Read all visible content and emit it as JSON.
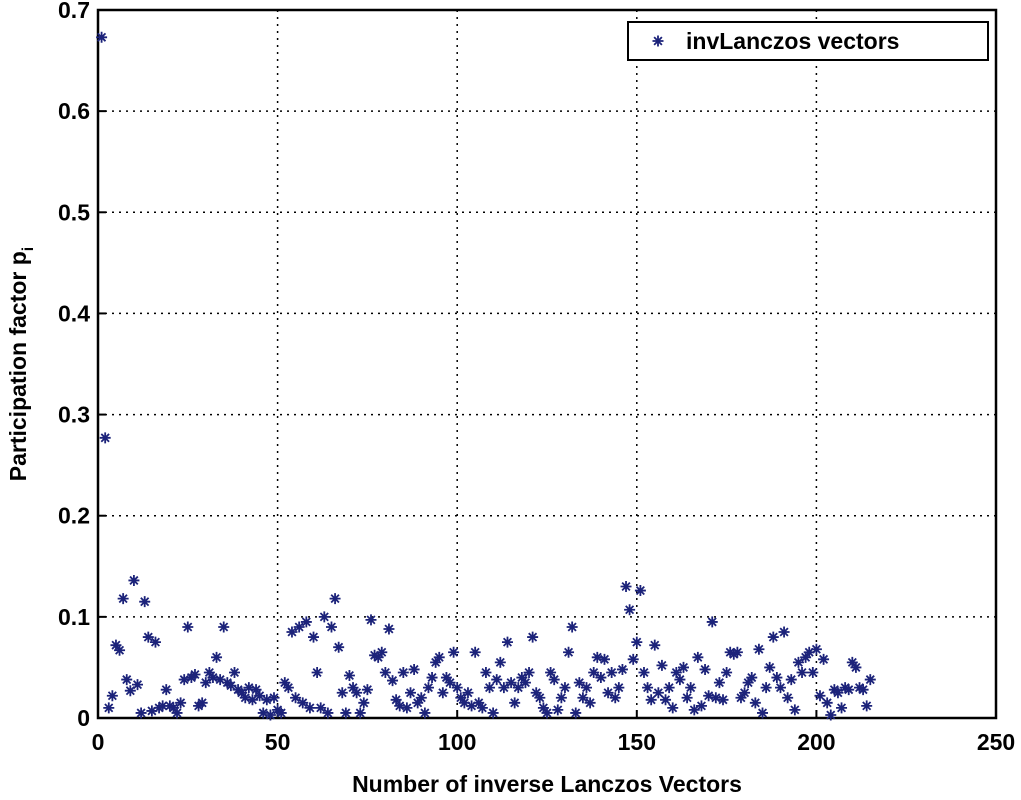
{
  "chart_data": {
    "type": "scatter",
    "xlabel": "Number of inverse Lanczos Vectors",
    "ylabel": "Participation factor p",
    "ylabel_subscript": "i",
    "series": [
      {
        "name": "invLanczos vectors",
        "color": "#1c237a",
        "x": [
          1,
          2,
          3,
          4,
          5,
          6,
          7,
          8,
          9,
          10,
          11,
          12,
          13,
          14,
          15,
          16,
          17,
          18,
          19,
          20,
          21,
          22,
          23,
          24,
          25,
          26,
          27,
          28,
          29,
          30,
          31,
          32,
          33,
          34,
          35,
          36,
          37,
          38,
          39,
          40,
          41,
          42,
          43,
          44,
          45,
          46,
          47,
          48,
          49,
          50,
          51,
          52,
          53,
          54,
          55,
          56,
          57,
          58,
          59,
          60,
          61,
          62,
          63,
          64,
          65,
          66,
          67,
          68,
          69,
          70,
          71,
          72,
          73,
          74,
          75,
          76,
          77,
          78,
          79,
          80,
          81,
          82,
          83,
          84,
          85,
          86,
          87,
          88,
          89,
          90,
          91,
          92,
          93,
          94,
          95,
          96,
          97,
          98,
          99,
          100,
          101,
          102,
          103,
          104,
          105,
          106,
          107,
          108,
          109,
          110,
          111,
          112,
          113,
          114,
          115,
          116,
          117,
          118,
          119,
          120,
          121,
          122,
          123,
          124,
          125,
          126,
          127,
          128,
          129,
          130,
          131,
          132,
          133,
          134,
          135,
          136,
          137,
          138,
          139,
          140,
          141,
          142,
          143,
          144,
          145,
          146,
          147,
          148,
          149,
          150,
          151,
          152,
          153,
          154,
          155,
          156,
          157,
          158,
          159,
          160,
          161,
          162,
          163,
          164,
          165,
          166,
          167,
          168,
          169,
          170,
          171,
          172,
          173,
          174,
          175,
          176,
          177,
          178,
          179,
          180,
          181,
          182,
          183,
          184,
          185,
          186,
          187,
          188,
          189,
          190,
          191,
          192,
          193,
          194,
          195,
          196,
          197,
          198,
          199,
          200,
          201,
          202,
          203,
          204,
          205,
          206,
          207,
          208,
          209,
          210,
          211,
          212,
          213,
          214,
          215
        ],
        "values": [
          0.673,
          0.277,
          0.01,
          0.022,
          0.072,
          0.067,
          0.118,
          0.038,
          0.027,
          0.136,
          0.033,
          0.005,
          0.115,
          0.08,
          0.007,
          0.075,
          0.01,
          0.012,
          0.028,
          0.012,
          0.01,
          0.005,
          0.015,
          0.038,
          0.09,
          0.04,
          0.043,
          0.012,
          0.015,
          0.035,
          0.045,
          0.04,
          0.06,
          0.038,
          0.09,
          0.035,
          0.032,
          0.045,
          0.028,
          0.025,
          0.02,
          0.03,
          0.018,
          0.028,
          0.022,
          0.005,
          0.018,
          0.003,
          0.02,
          0.008,
          0.005,
          0.035,
          0.03,
          0.085,
          0.02,
          0.09,
          0.015,
          0.095,
          0.01,
          0.08,
          0.045,
          0.01,
          0.1,
          0.005,
          0.09,
          0.118,
          0.07,
          0.025,
          0.005,
          0.042,
          0.03,
          0.025,
          0.005,
          0.015,
          0.028,
          0.097,
          0.062,
          0.06,
          0.065,
          0.045,
          0.088,
          0.037,
          0.018,
          0.012,
          0.045,
          0.01,
          0.025,
          0.048,
          0.015,
          0.02,
          0.005,
          0.03,
          0.04,
          0.055,
          0.06,
          0.025,
          0.04,
          0.035,
          0.065,
          0.03,
          0.02,
          0.015,
          0.025,
          0.012,
          0.065,
          0.015,
          0.01,
          0.045,
          0.03,
          0.005,
          0.038,
          0.055,
          0.03,
          0.075,
          0.035,
          0.015,
          0.03,
          0.04,
          0.035,
          0.045,
          0.08,
          0.025,
          0.02,
          0.01,
          0.005,
          0.045,
          0.038,
          0.008,
          0.02,
          0.03,
          0.065,
          0.09,
          0.005,
          0.035,
          0.02,
          0.03,
          0.015,
          0.045,
          0.06,
          0.04,
          0.058,
          0.025,
          0.045,
          0.02,
          0.03,
          0.048,
          0.13,
          0.107,
          0.058,
          0.075,
          0.126,
          0.045,
          0.03,
          0.018,
          0.072,
          0.025,
          0.052,
          0.018,
          0.03,
          0.01,
          0.045,
          0.038,
          0.05,
          0.02,
          0.03,
          0.008,
          0.06,
          0.012,
          0.048,
          0.022,
          0.095,
          0.02,
          0.035,
          0.018,
          0.045,
          0.065,
          0.063,
          0.065,
          0.02,
          0.025,
          0.035,
          0.04,
          0.015,
          0.068,
          0.005,
          0.03,
          0.05,
          0.08,
          0.04,
          0.03,
          0.085,
          0.02,
          0.038,
          0.008,
          0.055,
          0.045,
          0.06,
          0.065,
          0.045,
          0.068,
          0.022,
          0.058,
          0.015,
          0.003,
          0.028,
          0.025,
          0.01,
          0.03,
          0.028,
          0.055,
          0.05,
          0.03,
          0.028,
          0.012,
          0.038
        ]
      }
    ],
    "xlim": [
      0,
      250
    ],
    "xticks": [
      0,
      50,
      100,
      150,
      200,
      250
    ],
    "ylim": [
      0,
      0.7
    ],
    "yticks": [
      0,
      0.1,
      0.2,
      0.3,
      0.4,
      0.5,
      0.6,
      0.7
    ],
    "grid": true,
    "legend": "upper right"
  }
}
